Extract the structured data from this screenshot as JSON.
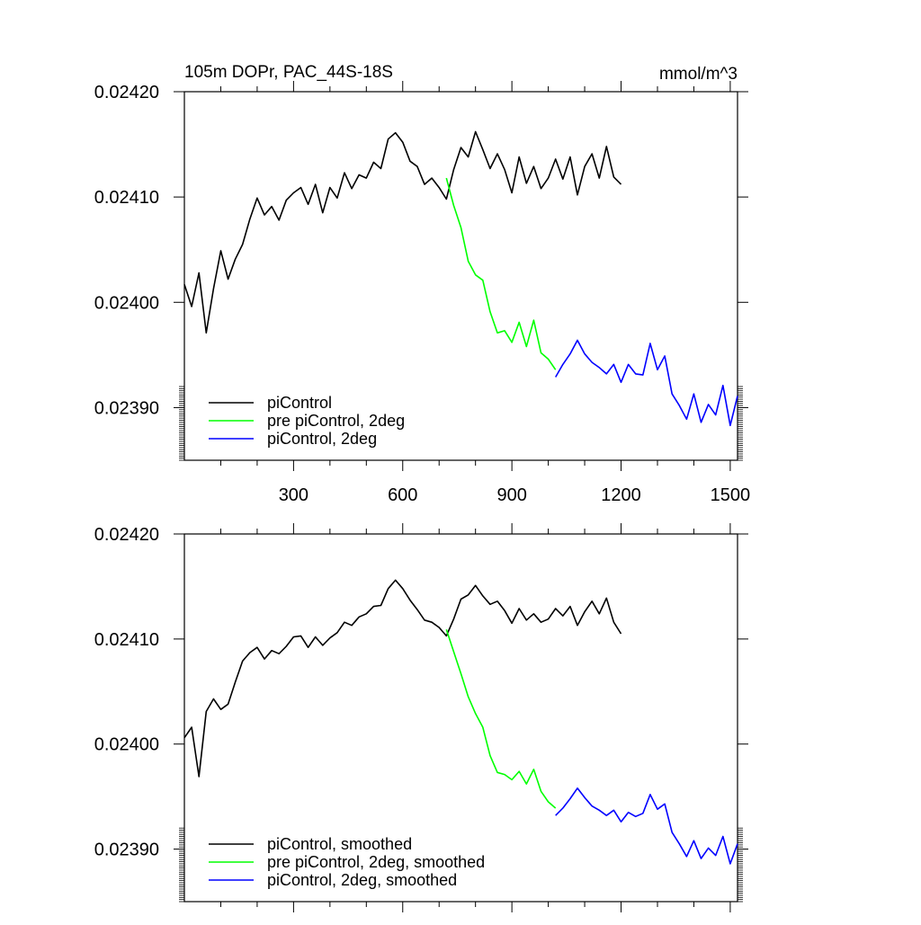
{
  "chart_data": [
    {
      "type": "line",
      "title": "105m DOPr, PAC_44S-18S",
      "units": "mmol/m^3",
      "xlim": [
        0,
        1520
      ],
      "ylim": [
        0.02385,
        0.0242
      ],
      "xticks": [
        300,
        600,
        900,
        1200,
        1500
      ],
      "yticks": [
        0.0239,
        0.024,
        0.0241,
        0.0242
      ],
      "ytick_labels": [
        "0.02390",
        "0.02400",
        "0.02410",
        "0.02420"
      ],
      "legend_position": "bottom-left",
      "series": [
        {
          "name": "piControl",
          "color": "#000000",
          "x": [
            0,
            20,
            40,
            60,
            80,
            100,
            120,
            140,
            160,
            180,
            200,
            220,
            240,
            260,
            280,
            300,
            320,
            340,
            360,
            380,
            400,
            420,
            440,
            460,
            480,
            500,
            520,
            540,
            560,
            580,
            600,
            620,
            640,
            660,
            680,
            700,
            720,
            740,
            760,
            780,
            800,
            820,
            840,
            860,
            880,
            900,
            920,
            940,
            960,
            980,
            1000,
            1020,
            1040,
            1060,
            1080,
            1100,
            1120,
            1140,
            1160,
            1180,
            1200
          ],
          "y": [
            0.024017,
            0.023996,
            0.024028,
            0.023971,
            0.024013,
            0.024049,
            0.024022,
            0.024041,
            0.024055,
            0.024079,
            0.024099,
            0.024083,
            0.024091,
            0.024078,
            0.024097,
            0.024104,
            0.024109,
            0.024093,
            0.024112,
            0.024085,
            0.024109,
            0.024099,
            0.024123,
            0.024108,
            0.024121,
            0.024118,
            0.024133,
            0.024127,
            0.024155,
            0.024161,
            0.024152,
            0.024134,
            0.024129,
            0.024112,
            0.024118,
            0.024109,
            0.024098,
            0.024126,
            0.024147,
            0.024138,
            0.024162,
            0.024145,
            0.024127,
            0.024141,
            0.024126,
            0.024104,
            0.024138,
            0.024113,
            0.024129,
            0.024108,
            0.024118,
            0.024136,
            0.024117,
            0.024138,
            0.024102,
            0.024129,
            0.024141,
            0.024118,
            0.024148,
            0.024119,
            0.024112
          ]
        },
        {
          "name": "pre piControl, 2deg",
          "color": "#00ff00",
          "x": [
            720,
            740,
            760,
            780,
            800,
            820,
            840,
            860,
            880,
            900,
            920,
            940,
            960,
            980,
            1000,
            1020
          ],
          "y": [
            0.024118,
            0.024092,
            0.024071,
            0.024039,
            0.024026,
            0.024021,
            0.023991,
            0.023971,
            0.023973,
            0.023962,
            0.023981,
            0.023958,
            0.023983,
            0.023952,
            0.023946,
            0.023936
          ]
        },
        {
          "name": "piControl, 2deg",
          "color": "#0000ff",
          "x": [
            1020,
            1040,
            1060,
            1080,
            1100,
            1120,
            1140,
            1160,
            1180,
            1200,
            1220,
            1240,
            1260,
            1280,
            1300,
            1320,
            1340,
            1360,
            1380,
            1400,
            1420,
            1440,
            1460,
            1480,
            1500,
            1520
          ],
          "y": [
            0.023929,
            0.023941,
            0.023951,
            0.023964,
            0.023951,
            0.023943,
            0.023938,
            0.023932,
            0.023941,
            0.023924,
            0.023941,
            0.023932,
            0.023931,
            0.023961,
            0.023936,
            0.023949,
            0.023913,
            0.023902,
            0.023889,
            0.023913,
            0.023886,
            0.023903,
            0.023893,
            0.023921,
            0.023883,
            0.023911
          ]
        }
      ]
    },
    {
      "type": "line",
      "xlim": [
        0,
        1520
      ],
      "ylim": [
        0.02385,
        0.0242
      ],
      "yticks": [
        0.0239,
        0.024,
        0.0241,
        0.0242
      ],
      "ytick_labels": [
        "0.02390",
        "0.02400",
        "0.02410",
        "0.02420"
      ],
      "legend_position": "bottom-left",
      "series": [
        {
          "name": "piControl, smoothed",
          "color": "#000000",
          "x": [
            0,
            20,
            40,
            60,
            80,
            100,
            120,
            140,
            160,
            180,
            200,
            220,
            240,
            260,
            280,
            300,
            320,
            340,
            360,
            380,
            400,
            420,
            440,
            460,
            480,
            500,
            520,
            540,
            560,
            580,
            600,
            620,
            640,
            660,
            680,
            700,
            720,
            740,
            760,
            780,
            800,
            820,
            840,
            860,
            880,
            900,
            920,
            940,
            960,
            980,
            1000,
            1020,
            1040,
            1060,
            1080,
            1100,
            1120,
            1140,
            1160,
            1180,
            1200
          ],
          "y": [
            0.024006,
            0.024016,
            0.023969,
            0.024031,
            0.024043,
            0.024033,
            0.024038,
            0.024059,
            0.024079,
            0.024087,
            0.024092,
            0.024081,
            0.024089,
            0.024086,
            0.024093,
            0.024102,
            0.024103,
            0.024092,
            0.024102,
            0.024094,
            0.024101,
            0.024106,
            0.024116,
            0.024113,
            0.024121,
            0.024124,
            0.024131,
            0.024132,
            0.024148,
            0.024156,
            0.024148,
            0.024137,
            0.024128,
            0.024118,
            0.024116,
            0.024111,
            0.024103,
            0.024119,
            0.024138,
            0.024142,
            0.024151,
            0.024141,
            0.024133,
            0.024136,
            0.024127,
            0.024115,
            0.024129,
            0.024118,
            0.024124,
            0.024116,
            0.024119,
            0.024129,
            0.024122,
            0.024131,
            0.024113,
            0.024126,
            0.024136,
            0.024124,
            0.024139,
            0.024116,
            0.024105
          ]
        },
        {
          "name": "pre piControl, 2deg, smoothed",
          "color": "#00ff00",
          "x": [
            720,
            740,
            760,
            780,
            800,
            820,
            840,
            860,
            880,
            900,
            920,
            940,
            960,
            980,
            1000,
            1020
          ],
          "y": [
            0.024109,
            0.024088,
            0.024067,
            0.024045,
            0.024029,
            0.024016,
            0.023989,
            0.023973,
            0.023971,
            0.023966,
            0.023974,
            0.023962,
            0.023976,
            0.023955,
            0.023945,
            0.023939
          ]
        },
        {
          "name": "piControl, 2deg, smoothed",
          "color": "#0000ff",
          "x": [
            1020,
            1040,
            1060,
            1080,
            1100,
            1120,
            1140,
            1160,
            1180,
            1200,
            1220,
            1240,
            1260,
            1280,
            1300,
            1320,
            1340,
            1360,
            1380,
            1400,
            1420,
            1440,
            1460,
            1480,
            1500,
            1520
          ],
          "y": [
            0.023932,
            0.023939,
            0.023948,
            0.023958,
            0.023949,
            0.023941,
            0.023937,
            0.023932,
            0.023937,
            0.023926,
            0.023935,
            0.023931,
            0.023934,
            0.023952,
            0.023938,
            0.023943,
            0.023916,
            0.023905,
            0.023893,
            0.023908,
            0.023891,
            0.023901,
            0.023894,
            0.023912,
            0.023886,
            0.023905
          ]
        }
      ]
    }
  ]
}
